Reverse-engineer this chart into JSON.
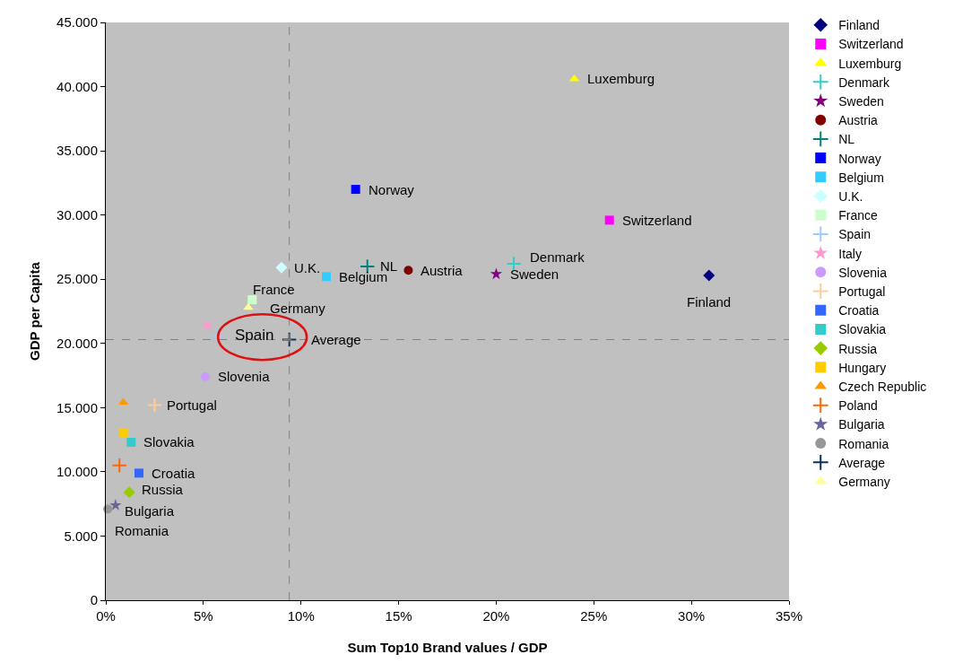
{
  "chart_data": {
    "type": "scatter",
    "xlabel": "Sum Top10 Brand values / GDP",
    "ylabel": "GDP per Capita",
    "xlim": [
      0,
      35
    ],
    "ylim": [
      0,
      45000
    ],
    "xticks": [
      {
        "value": 0,
        "label": "0%"
      },
      {
        "value": 5,
        "label": "5%"
      },
      {
        "value": 10,
        "label": "10%"
      },
      {
        "value": 15,
        "label": "15%"
      },
      {
        "value": 20,
        "label": "20%"
      },
      {
        "value": 25,
        "label": "25%"
      },
      {
        "value": 30,
        "label": "30%"
      },
      {
        "value": 35,
        "label": "35%"
      }
    ],
    "yticks": [
      {
        "value": 0,
        "label": "0"
      },
      {
        "value": 5000,
        "label": "5.000"
      },
      {
        "value": 10000,
        "label": "10.000"
      },
      {
        "value": 15000,
        "label": "15.000"
      },
      {
        "value": 20000,
        "label": "20.000"
      },
      {
        "value": 25000,
        "label": "25.000"
      },
      {
        "value": 30000,
        "label": "30.000"
      },
      {
        "value": 35000,
        "label": "35.000"
      },
      {
        "value": 40000,
        "label": "40.000"
      },
      {
        "value": 45000,
        "label": "45.000"
      }
    ],
    "grid": false,
    "legend": "right",
    "series": [
      {
        "name": "Finland",
        "color": "#000080",
        "marker": "diamond",
        "x": [
          30.9
        ],
        "values": [
          25300
        ]
      },
      {
        "name": "Switzerland",
        "color": "#ff00ff",
        "marker": "square",
        "x": [
          25.8
        ],
        "values": [
          29600
        ]
      },
      {
        "name": "Luxemburg",
        "color": "#ffff00",
        "marker": "triangle",
        "x": [
          24.0
        ],
        "values": [
          40600
        ]
      },
      {
        "name": "Denmark",
        "color": "#33cccc",
        "marker": "cross",
        "x": [
          20.9
        ],
        "values": [
          26200
        ]
      },
      {
        "name": "Sweden",
        "color": "#800080",
        "marker": "star",
        "x": [
          20.0
        ],
        "values": [
          25400
        ]
      },
      {
        "name": "Austria",
        "color": "#800000",
        "marker": "circle",
        "x": [
          15.5
        ],
        "values": [
          25700
        ]
      },
      {
        "name": "NL",
        "color": "#008080",
        "marker": "cross",
        "x": [
          13.4
        ],
        "values": [
          26000
        ]
      },
      {
        "name": "Norway",
        "color": "#0000ff",
        "marker": "square",
        "x": [
          12.8
        ],
        "values": [
          32000
        ]
      },
      {
        "name": "Belgium",
        "color": "#33ccff",
        "marker": "square",
        "x": [
          11.3
        ],
        "values": [
          25200
        ]
      },
      {
        "name": "U.K.",
        "color": "#ccffff",
        "marker": "diamond",
        "x": [
          9.0
        ],
        "values": [
          25900
        ]
      },
      {
        "name": "France",
        "color": "#ccffcc",
        "marker": "square",
        "x": [
          7.5
        ],
        "values": [
          23400
        ]
      },
      {
        "name": "Spain",
        "color": "#99ccff",
        "marker": "cross",
        "x": [
          5.7
        ],
        "values": [
          20600
        ]
      },
      {
        "name": "Italy",
        "color": "#ff99cc",
        "marker": "star",
        "x": [
          5.2
        ],
        "values": [
          21400
        ]
      },
      {
        "name": "Slovenia",
        "color": "#cc99ff",
        "marker": "circle",
        "x": [
          5.1
        ],
        "values": [
          17400
        ]
      },
      {
        "name": "Portugal",
        "color": "#ffcc99",
        "marker": "cross",
        "x": [
          2.5
        ],
        "values": [
          15200
        ]
      },
      {
        "name": "Croatia",
        "color": "#3366ff",
        "marker": "square",
        "x": [
          1.7
        ],
        "values": [
          9900
        ]
      },
      {
        "name": "Slovakia",
        "color": "#33cccc",
        "marker": "square",
        "x": [
          1.3
        ],
        "values": [
          12300
        ]
      },
      {
        "name": "Russia",
        "color": "#99cc00",
        "marker": "diamond",
        "x": [
          1.2
        ],
        "values": [
          8400
        ]
      },
      {
        "name": "Hungary",
        "color": "#ffcc00",
        "marker": "square",
        "x": [
          0.9
        ],
        "values": [
          13000
        ]
      },
      {
        "name": "Czech Republic",
        "color": "#ff9900",
        "marker": "triangle",
        "x": [
          0.9
        ],
        "values": [
          15400
        ]
      },
      {
        "name": "Poland",
        "color": "#ff6600",
        "marker": "cross",
        "x": [
          0.7
        ],
        "values": [
          10500
        ]
      },
      {
        "name": "Bulgaria",
        "color": "#666699",
        "marker": "star",
        "x": [
          0.5
        ],
        "values": [
          7400
        ]
      },
      {
        "name": "Romania",
        "color": "#969696",
        "marker": "circle",
        "x": [
          0.1
        ],
        "values": [
          7100
        ]
      },
      {
        "name": "Average",
        "color": "#003366",
        "marker": "cross",
        "x": [
          9.4
        ],
        "values": [
          20300
        ]
      },
      {
        "name": "Germany",
        "color": "#ffff99",
        "marker": "triangle",
        "x": [
          7.3
        ],
        "values": [
          22800
        ]
      }
    ],
    "ref_lines": [
      {
        "axis": "x",
        "value": 9.4,
        "color": "#808080",
        "line_style": "dashed"
      },
      {
        "axis": "y",
        "value": 20300,
        "color": "#808080",
        "line_style": "dashed"
      }
    ],
    "annotations": [
      {
        "text": "Finland",
        "x": 30.9,
        "y": 25300
      },
      {
        "text": "Switzerland",
        "x": 25.8,
        "y": 29600
      },
      {
        "text": "Luxemburg",
        "x": 24.0,
        "y": 40600
      },
      {
        "text": "Denmark",
        "x": 20.9,
        "y": 26200
      },
      {
        "text": "Sweden",
        "x": 20.0,
        "y": 25400
      },
      {
        "text": "Austria",
        "x": 15.5,
        "y": 25700
      },
      {
        "text": "NL",
        "x": 13.4,
        "y": 26000
      },
      {
        "text": "Norway",
        "x": 12.8,
        "y": 32000
      },
      {
        "text": "Belgium",
        "x": 11.3,
        "y": 25200
      },
      {
        "text": "U.K.",
        "x": 9.0,
        "y": 25900
      },
      {
        "text": "France",
        "x": 7.5,
        "y": 23400
      },
      {
        "text": "Germany",
        "x": 7.3,
        "y": 22800
      },
      {
        "text": "Spain",
        "x": 5.7,
        "y": 20600
      },
      {
        "text": "Average",
        "x": 9.4,
        "y": 20300
      },
      {
        "text": "Slovenia",
        "x": 5.1,
        "y": 17400
      },
      {
        "text": "Portugal",
        "x": 2.5,
        "y": 15200
      },
      {
        "text": "Slovakia",
        "x": 1.3,
        "y": 12300
      },
      {
        "text": "Croatia",
        "x": 1.7,
        "y": 9900
      },
      {
        "text": "Russia",
        "x": 1.2,
        "y": 8400
      },
      {
        "text": "Bulgaria",
        "x": 0.5,
        "y": 7400
      },
      {
        "text": "Romania",
        "x": 0.1,
        "y": 7100
      }
    ]
  }
}
